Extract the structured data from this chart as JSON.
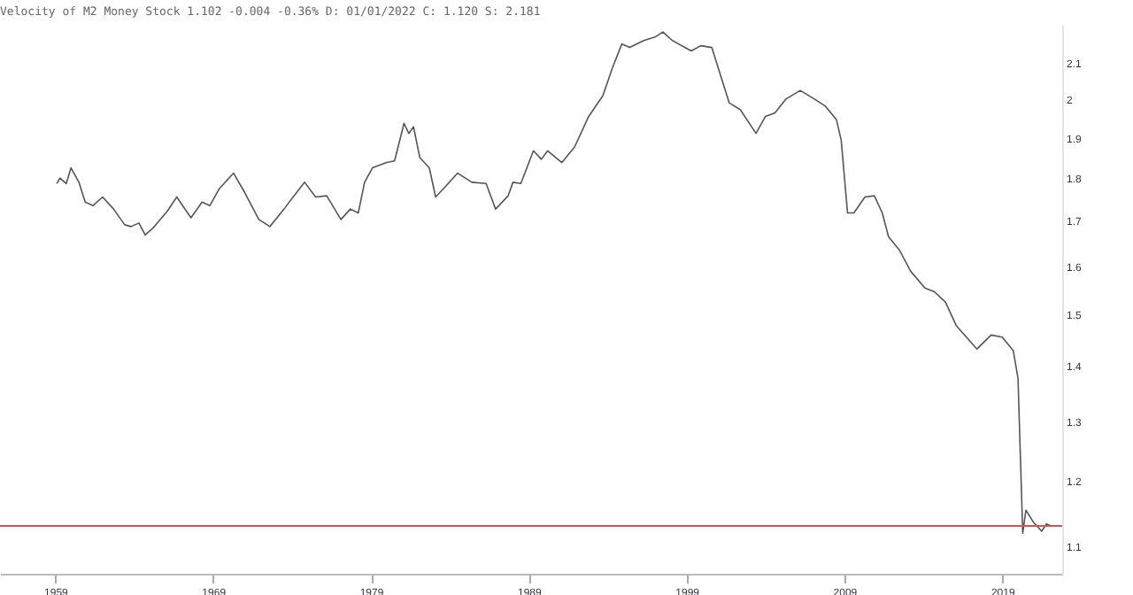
{
  "chart_data": {
    "type": "line",
    "title": "Velocity of M2 Money Stock 1.102 -0.004 -0.36% D: 01/01/2022 C: 1.120 S: 2.181",
    "x": [
      1959.1,
      1959.3,
      1959.7,
      1960.0,
      1960.5,
      1960.9,
      1961.4,
      1962.0,
      1962.7,
      1963.4,
      1963.8,
      1964.3,
      1964.7,
      1965.2,
      1966.1,
      1966.7,
      1967.6,
      1968.3,
      1968.8,
      1969.4,
      1970.3,
      1971.0,
      1971.9,
      1972.6,
      1973.5,
      1973.9,
      1974.8,
      1975.5,
      1976.2,
      1977.1,
      1977.7,
      1978.2,
      1978.6,
      1979.1,
      1980.0,
      1980.5,
      1981.1,
      1981.4,
      1981.7,
      1982.1,
      1982.7,
      1983.1,
      1983.6,
      1984.5,
      1985.4,
      1986.3,
      1986.9,
      1987.7,
      1988.0,
      1988.5,
      1989.3,
      1989.8,
      1990.2,
      1991.1,
      1991.9,
      1992.8,
      1993.7,
      1994.3,
      1994.9,
      1995.4,
      1996.3,
      1997.0,
      1997.5,
      1998.1,
      1999.3,
      1999.9,
      2000.6,
      2000.8,
      2001.7,
      2002.4,
      2003.4,
      2004.0,
      2004.6,
      2005.3,
      2006.2,
      2007.1,
      2007.8,
      2008.5,
      2008.8,
      2009.2,
      2009.6,
      2010.3,
      2010.9,
      2011.4,
      2011.8,
      2012.5,
      2013.2,
      2014.1,
      2014.7,
      2015.4,
      2016.1,
      2017.4,
      2018.3,
      2019.0,
      2019.7,
      2020.0,
      2020.2,
      2020.3,
      2020.5,
      2021.0,
      2021.5,
      2021.8,
      2022.1
    ],
    "series": [
      {
        "color": "#555555",
        "values": [
          1.787,
          1.8,
          1.787,
          1.825,
          1.79,
          1.743,
          1.735,
          1.755,
          1.727,
          1.691,
          1.687,
          1.695,
          1.668,
          1.684,
          1.722,
          1.755,
          1.707,
          1.743,
          1.735,
          1.775,
          1.812,
          1.766,
          1.703,
          1.687,
          1.727,
          1.747,
          1.79,
          1.755,
          1.758,
          1.703,
          1.727,
          1.718,
          1.79,
          1.825,
          1.838,
          1.842,
          1.937,
          1.911,
          1.928,
          1.85,
          1.825,
          1.755,
          1.775,
          1.812,
          1.79,
          1.787,
          1.727,
          1.758,
          1.79,
          1.787,
          1.867,
          1.846,
          1.867,
          1.838,
          1.876,
          1.955,
          2.01,
          2.086,
          2.154,
          2.144,
          2.164,
          2.174,
          2.189,
          2.164,
          2.134,
          2.149,
          2.144,
          2.115,
          1.991,
          1.973,
          1.911,
          1.955,
          1.964,
          2.001,
          2.024,
          2.001,
          1.982,
          1.946,
          1.893,
          1.718,
          1.718,
          1.755,
          1.758,
          1.718,
          1.664,
          1.634,
          1.589,
          1.554,
          1.546,
          1.525,
          1.477,
          1.432,
          1.459,
          1.455,
          1.429,
          1.377,
          1.2,
          1.119,
          1.154,
          1.135,
          1.122,
          1.133,
          1.13
        ]
      }
    ],
    "xlim": [
      1955.5,
      2022.8
    ],
    "xticks": [
      1959,
      1969,
      1979,
      1989,
      1999,
      2009,
      2019
    ],
    "ylim": [
      1.06,
      2.21
    ],
    "yticks": [
      1.1,
      1.2,
      1.3,
      1.4,
      1.5,
      1.6,
      1.7,
      1.8,
      1.9,
      2.0,
      2.1
    ],
    "log": "y",
    "ref_lines": [
      {
        "axis": "y",
        "value": 1.13,
        "color": "#d9534f"
      }
    ]
  }
}
